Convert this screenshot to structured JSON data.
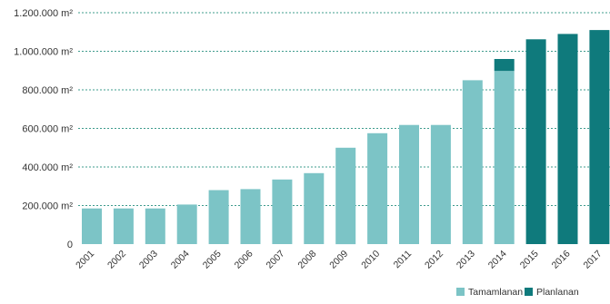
{
  "chart_data": {
    "type": "bar",
    "categories": [
      "2001",
      "2002",
      "2003",
      "2004",
      "2005",
      "2006",
      "2007",
      "2008",
      "2009",
      "2010",
      "2011",
      "2012",
      "2013",
      "2014",
      "2015",
      "2016",
      "2017"
    ],
    "series": [
      {
        "name": "Tamamlanan",
        "color": "#7cc4c6",
        "values": [
          185000,
          185000,
          185000,
          205000,
          280000,
          285000,
          335000,
          368000,
          500000,
          575000,
          618000,
          618000,
          850000,
          898000,
          0,
          0,
          0
        ]
      },
      {
        "name": "Planlanan",
        "color": "#0f7a7c",
        "values": [
          0,
          0,
          0,
          0,
          0,
          0,
          0,
          0,
          0,
          0,
          0,
          0,
          0,
          62000,
          1062000,
          1090000,
          1110000
        ]
      }
    ],
    "stacked": true,
    "yticks": [
      {
        "value": 0,
        "label": "0"
      },
      {
        "value": 200000,
        "label": "200.000 m²"
      },
      {
        "value": 400000,
        "label": "400.000 m²"
      },
      {
        "value": 600000,
        "label": "600.000 m²"
      },
      {
        "value": 800000,
        "label": "800.000 m²"
      },
      {
        "value": 1000000,
        "label": "1.000.000 m²"
      },
      {
        "value": 1200000,
        "label": "1.200.000 m²"
      }
    ],
    "ylim": [
      0,
      1200000
    ],
    "grid": true,
    "grid_color": "#3f9c8e",
    "legend_position": "bottom-right",
    "title": "",
    "xlabel": "",
    "ylabel": ""
  }
}
